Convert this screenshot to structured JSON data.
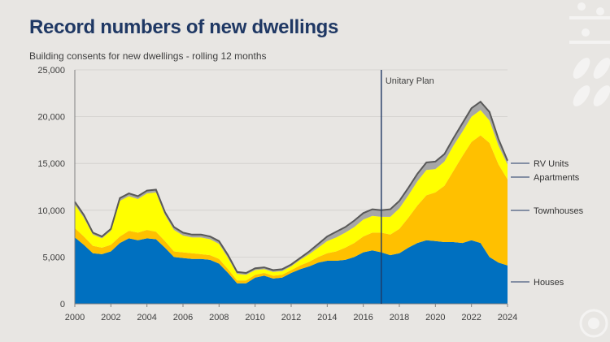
{
  "header": {
    "title": "Record numbers of new dwellings",
    "subtitle": "Building consents for new dwellings - rolling 12 months"
  },
  "chart_data": {
    "type": "area",
    "stacked": true,
    "title": "Record numbers of new dwellings",
    "subtitle": "Building consents for new dwellings - rolling 12 months",
    "xlabel": "",
    "ylabel": "",
    "xlim": [
      2000,
      2024
    ],
    "ylim": [
      0,
      25000
    ],
    "x_ticks": [
      2000,
      2002,
      2004,
      2006,
      2008,
      2010,
      2012,
      2014,
      2016,
      2018,
      2020,
      2022,
      2024
    ],
    "y_ticks": [
      0,
      5000,
      10000,
      15000,
      20000,
      25000
    ],
    "y_tick_labels": [
      "0",
      "5,000",
      "10,000",
      "15,000",
      "20,000",
      "25,000"
    ],
    "x": [
      2000.0,
      2000.5,
      2001.0,
      2001.5,
      2002.0,
      2002.5,
      2003.0,
      2003.5,
      2004.0,
      2004.5,
      2005.0,
      2005.5,
      2006.0,
      2006.5,
      2007.0,
      2007.5,
      2008.0,
      2008.5,
      2009.0,
      2009.5,
      2010.0,
      2010.5,
      2011.0,
      2011.5,
      2012.0,
      2012.5,
      2013.0,
      2013.5,
      2014.0,
      2014.5,
      2015.0,
      2015.5,
      2016.0,
      2016.5,
      2017.0,
      2017.5,
      2018.0,
      2018.5,
      2019.0,
      2019.5,
      2020.0,
      2020.5,
      2021.0,
      2021.5,
      2022.0,
      2022.5,
      2023.0,
      2023.5,
      2024.0
    ],
    "series": [
      {
        "name": "Houses",
        "color": "#0070c0",
        "values": [
          7100,
          6300,
          5400,
          5300,
          5600,
          6500,
          7000,
          6800,
          7000,
          6900,
          6000,
          5000,
          4900,
          4800,
          4800,
          4700,
          4300,
          3300,
          2200,
          2200,
          2800,
          3000,
          2700,
          2800,
          3300,
          3700,
          4000,
          4400,
          4600,
          4600,
          4700,
          5000,
          5500,
          5700,
          5500,
          5200,
          5400,
          6000,
          6500,
          6800,
          6700,
          6600,
          6600,
          6500,
          6800,
          6500,
          5000,
          4400,
          4100
        ]
      },
      {
        "name": "Townhouses",
        "color": "#ffc000",
        "values": [
          1000,
          900,
          800,
          700,
          700,
          700,
          800,
          800,
          900,
          800,
          700,
          600,
          600,
          600,
          500,
          500,
          500,
          400,
          300,
          300,
          300,
          300,
          300,
          300,
          300,
          400,
          500,
          600,
          800,
          1000,
          1300,
          1500,
          1700,
          1900,
          2100,
          2200,
          2600,
          3200,
          4000,
          4800,
          5200,
          6000,
          7600,
          9300,
          10500,
          11500,
          12200,
          10500,
          9200
        ]
      },
      {
        "name": "Apartments",
        "color": "#ffff00",
        "values": [
          2500,
          2000,
          1200,
          1000,
          1500,
          3800,
          3700,
          3600,
          3900,
          4200,
          2800,
          2300,
          1800,
          1700,
          1800,
          1700,
          1600,
          1200,
          700,
          600,
          500,
          400,
          400,
          400,
          400,
          600,
          800,
          1000,
          1300,
          1500,
          1600,
          1700,
          1800,
          1800,
          1700,
          1900,
          2200,
          2400,
          2600,
          2700,
          2500,
          2600,
          2700,
          2600,
          2700,
          2700,
          2400,
          2000,
          1600
        ]
      },
      {
        "name": "RV Units",
        "color": "#a6a6a6",
        "values": [
          300,
          300,
          200,
          200,
          200,
          300,
          300,
          300,
          300,
          300,
          300,
          300,
          300,
          300,
          300,
          300,
          300,
          300,
          200,
          200,
          200,
          200,
          200,
          200,
          200,
          200,
          300,
          400,
          500,
          600,
          600,
          700,
          700,
          700,
          700,
          800,
          800,
          800,
          800,
          800,
          800,
          800,
          800,
          900,
          900,
          900,
          900,
          700,
          400
        ]
      }
    ],
    "total_line_color": "#595959",
    "annotations": [
      {
        "type": "vline",
        "x": 2017.0,
        "label": "Unitary Plan",
        "color": "#1f3864"
      }
    ],
    "legend_position": "right, aligned with series ends"
  }
}
